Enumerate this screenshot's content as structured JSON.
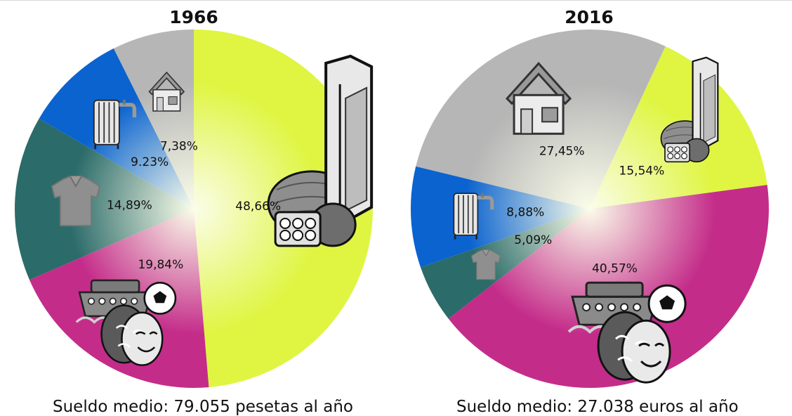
{
  "colors": {
    "alimentacion": "#dff542",
    "ocio": "#c42c8a",
    "ropa": "#2b6b69",
    "suministros": "#0a63cf",
    "vivienda": "#b6b6b6"
  },
  "chart_data": [
    {
      "type": "pie",
      "title": "1966",
      "caption": "Sueldo medio: 79.055 pesetas al año",
      "slices": [
        {
          "key": "alimentacion",
          "icon": "milk-bread-eggs-icon",
          "value": 48.66,
          "label": "48,66%"
        },
        {
          "key": "ocio",
          "icon": "leisure-theater-ship-football-icon",
          "value": 19.84,
          "label": "19,84%"
        },
        {
          "key": "ropa",
          "icon": "shirt-icon",
          "value": 14.89,
          "label": "14,89%"
        },
        {
          "key": "suministros",
          "icon": "radiator-faucet-icon",
          "value": 9.23,
          "label": "9.23%"
        },
        {
          "key": "vivienda",
          "icon": "house-icon",
          "value": 7.38,
          "label": "7,38%"
        }
      ]
    },
    {
      "type": "pie",
      "title": "2016",
      "caption": "Sueldo medio: 27.038 euros al año",
      "slices": [
        {
          "key": "alimentacion",
          "icon": "milk-bread-eggs-icon",
          "value": 15.54,
          "label": "15,54%"
        },
        {
          "key": "ocio",
          "icon": "leisure-theater-ship-football-icon",
          "value": 40.57,
          "label": "40,57%"
        },
        {
          "key": "ropa",
          "icon": "shirt-icon",
          "value": 5.09,
          "label": "5,09%"
        },
        {
          "key": "suministros",
          "icon": "radiator-faucet-icon",
          "value": 8.88,
          "label": "8,88%"
        },
        {
          "key": "vivienda",
          "icon": "house-icon",
          "value": 27.45,
          "label": "27,45%"
        }
      ]
    }
  ]
}
